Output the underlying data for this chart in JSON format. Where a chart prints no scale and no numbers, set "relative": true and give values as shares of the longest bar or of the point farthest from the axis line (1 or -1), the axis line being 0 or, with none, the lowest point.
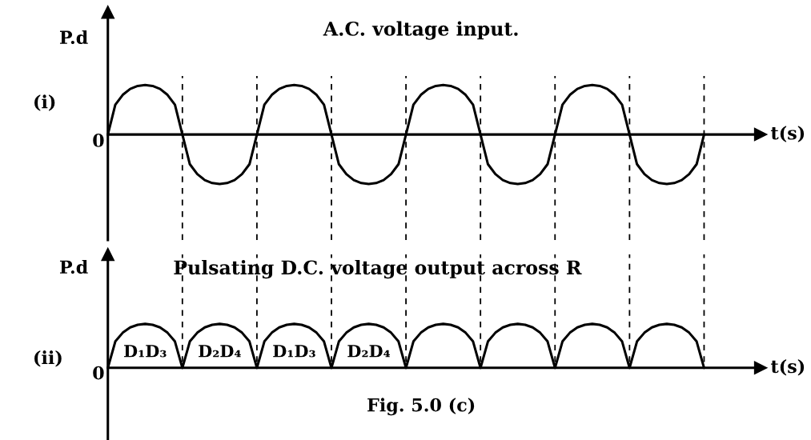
{
  "chart_data": [
    {
      "type": "line",
      "relative": true,
      "grid": "x",
      "title": "A.C. voltage input.",
      "ylabel": "P.d",
      "xlabel": "t(s)",
      "categories": [
        null,
        null,
        null,
        null,
        null,
        null,
        null,
        null,
        null,
        null,
        null,
        null,
        null,
        null,
        null,
        null,
        null,
        null,
        null,
        null,
        null,
        null,
        null,
        null,
        null,
        null,
        null,
        null,
        null,
        null,
        null,
        null,
        null,
        null,
        null,
        null,
        null,
        null,
        null,
        null,
        null,
        null,
        null,
        null,
        null,
        null,
        null,
        null,
        null,
        null,
        null,
        null,
        null,
        null,
        null,
        null,
        null,
        null,
        null,
        null,
        null,
        null,
        null,
        null,
        null,
        null,
        null,
        null,
        null,
        null,
        null,
        null,
        null,
        null,
        null,
        null,
        null,
        null,
        null,
        null,
        null
      ],
      "series": [
        {
          "color": "#000000",
          "values": [
            0,
            0.6,
            0.8,
            0.92,
            0.98,
            1,
            0.98,
            0.92,
            0.8,
            0.6,
            0,
            -0.6,
            -0.8,
            -0.92,
            -0.98,
            -1,
            -0.98,
            -0.92,
            -0.8,
            -0.6,
            0,
            0.6,
            0.8,
            0.92,
            0.98,
            1,
            0.98,
            0.92,
            0.8,
            0.6,
            0,
            -0.6,
            -0.8,
            -0.92,
            -0.98,
            -1,
            -0.98,
            -0.92,
            -0.8,
            -0.6,
            0,
            0.6,
            0.8,
            0.92,
            0.98,
            1,
            0.98,
            0.92,
            0.8,
            0.6,
            0,
            -0.6,
            -0.8,
            -0.92,
            -0.98,
            -1,
            -0.98,
            -0.92,
            -0.8,
            -0.6,
            0,
            0.6,
            0.8,
            0.92,
            0.98,
            1,
            0.98,
            0.92,
            0.8,
            0.6,
            0,
            -0.6,
            -0.8,
            -0.92,
            -0.98,
            -1,
            -0.98,
            -0.92,
            -0.8,
            -0.6,
            0
          ]
        }
      ],
      "annotations": [
        "(i)",
        "0"
      ]
    },
    {
      "type": "line",
      "relative": true,
      "grid": "x",
      "title": "Pulsating D.C. voltage output across R",
      "ylabel": "P.d",
      "xlabel": "t(s)",
      "categories": [
        null,
        null,
        null,
        null,
        null,
        null,
        null,
        null,
        null,
        null,
        null,
        null,
        null,
        null,
        null,
        null,
        null,
        null,
        null,
        null,
        null,
        null,
        null,
        null,
        null,
        null,
        null,
        null,
        null,
        null,
        null,
        null,
        null,
        null,
        null,
        null,
        null,
        null,
        null,
        null,
        null,
        null,
        null,
        null,
        null,
        null,
        null,
        null,
        null,
        null,
        null,
        null,
        null,
        null,
        null,
        null,
        null,
        null,
        null,
        null,
        null,
        null,
        null,
        null,
        null,
        null,
        null,
        null,
        null,
        null,
        null,
        null,
        null,
        null,
        null,
        null,
        null,
        null,
        null,
        null,
        null
      ],
      "series": [
        {
          "color": "#000000",
          "values": [
            0,
            0.6,
            0.8,
            0.92,
            0.98,
            1,
            0.98,
            0.92,
            0.8,
            0.6,
            0,
            0.6,
            0.8,
            0.92,
            0.98,
            1,
            0.98,
            0.92,
            0.8,
            0.6,
            0,
            0.6,
            0.8,
            0.92,
            0.98,
            1,
            0.98,
            0.92,
            0.8,
            0.6,
            0,
            0.6,
            0.8,
            0.92,
            0.98,
            1,
            0.98,
            0.92,
            0.8,
            0.6,
            0,
            0.6,
            0.8,
            0.92,
            0.98,
            1,
            0.98,
            0.92,
            0.8,
            0.6,
            0,
            0.6,
            0.8,
            0.92,
            0.98,
            1,
            0.98,
            0.92,
            0.8,
            0.6,
            0,
            0.6,
            0.8,
            0.92,
            0.98,
            1,
            0.98,
            0.92,
            0.8,
            0.6,
            0,
            0.6,
            0.8,
            0.92,
            0.98,
            1,
            0.98,
            0.92,
            0.8,
            0.6,
            0
          ]
        }
      ],
      "annotations": [
        "(ii)",
        "0",
        "D₁D₃",
        "D₂D₄",
        "D₁D₃",
        "D₂D₄",
        "Fig. 5.0 (c)"
      ]
    }
  ]
}
